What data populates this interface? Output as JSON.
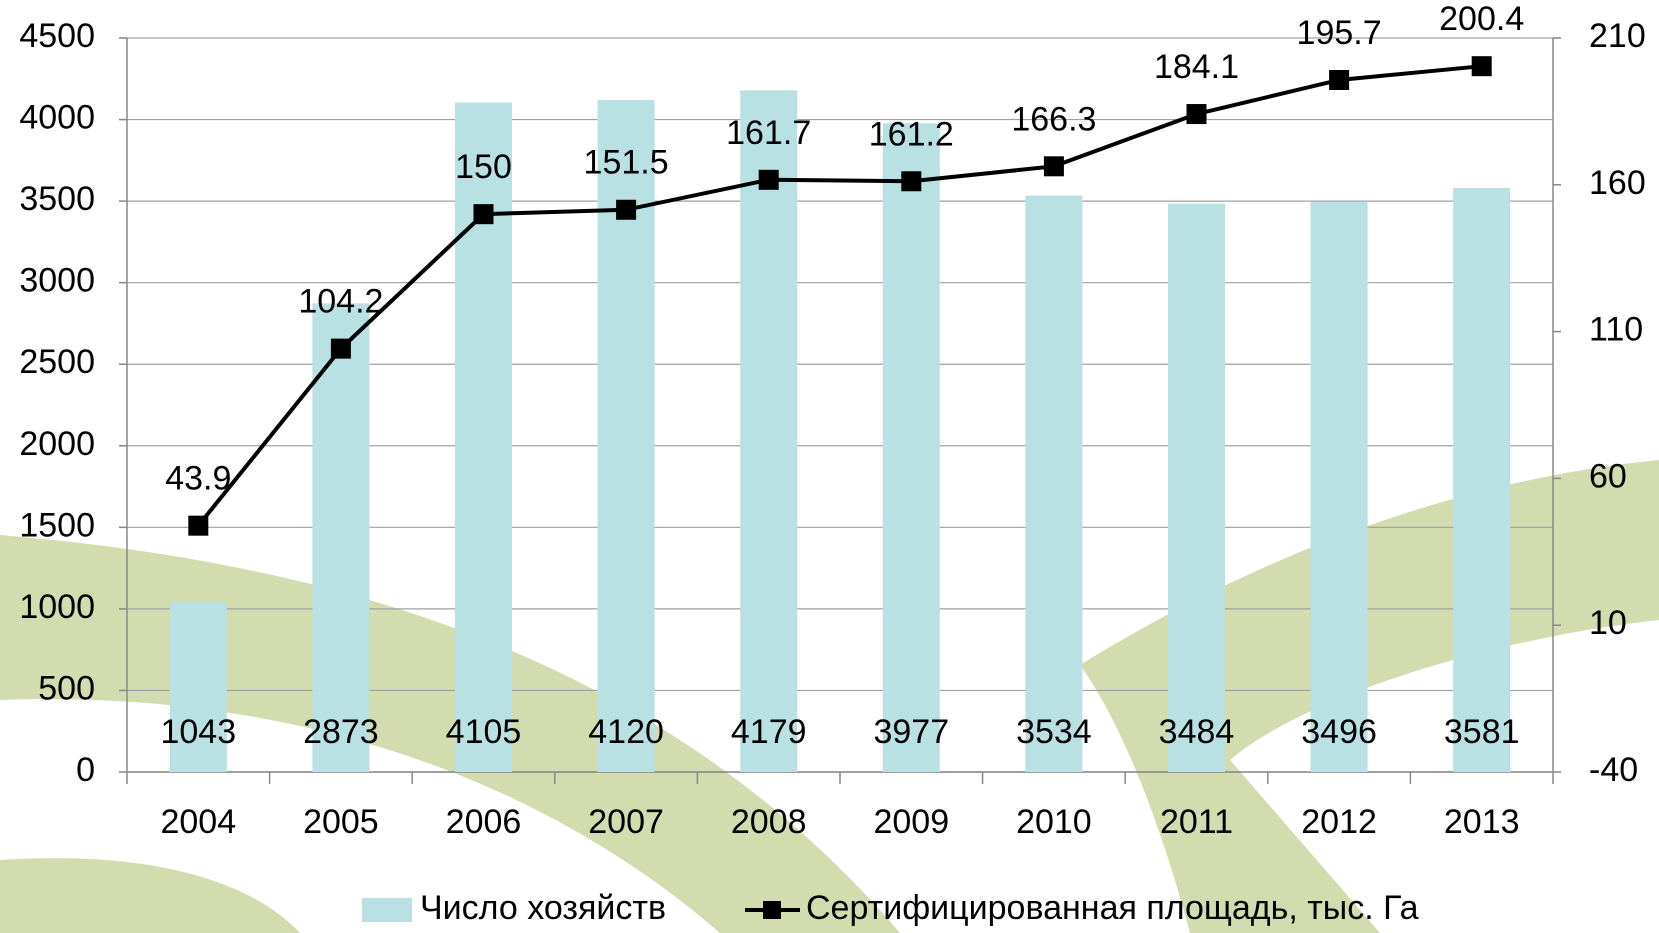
{
  "chart_data": {
    "type": "bar",
    "categories": [
      "2004",
      "2005",
      "2006",
      "2007",
      "2008",
      "2009",
      "2010",
      "2011",
      "2012",
      "2013"
    ],
    "series": [
      {
        "name": "Число хозяйств",
        "color": "#b9e0e3",
        "values": [
          1043,
          2873,
          4105,
          4120,
          4179,
          3977,
          3534,
          3484,
          3496,
          3581
        ]
      },
      {
        "name": "Сертифицированная площадь, тыс. Га",
        "color": "#000000",
        "type": "line",
        "axis": "y2",
        "values": [
          43.9,
          104.2,
          150,
          151.5,
          161.7,
          161.2,
          166.3,
          184.1,
          195.7,
          200.4
        ]
      }
    ],
    "ylim": [
      0,
      4500
    ],
    "yticks": [
      0,
      500,
      1000,
      1500,
      2000,
      2500,
      3000,
      3500,
      4000,
      4500
    ],
    "y2lim": [
      -40,
      210
    ],
    "y2ticks": [
      -40,
      10,
      60,
      110,
      160,
      210
    ],
    "grid": true,
    "legend": "bottom"
  }
}
